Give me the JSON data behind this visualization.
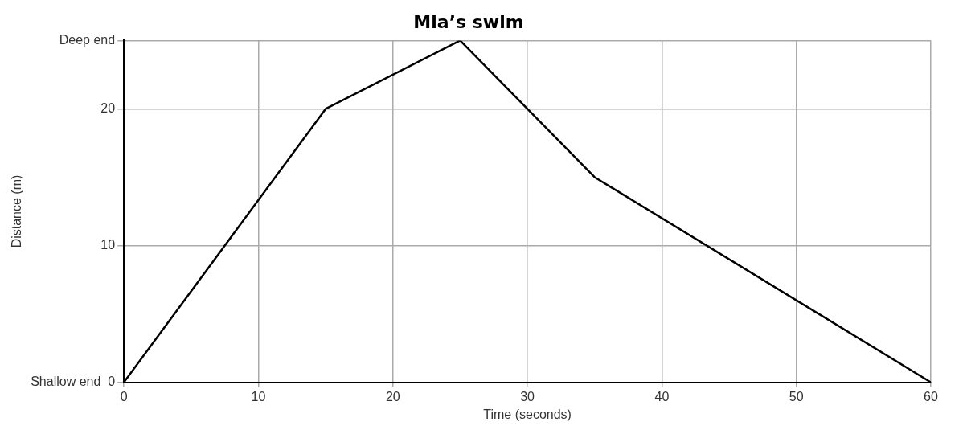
{
  "chart_data": {
    "type": "line",
    "title": "Mia’s swim",
    "xlabel": "Time (seconds)",
    "ylabel": "Distance (m)",
    "x": [
      0,
      15,
      25,
      35,
      60
    ],
    "series": [
      {
        "color": "#000000",
        "values": [
          0,
          20,
          25,
          15,
          0
        ]
      }
    ],
    "xlim": [
      0,
      60
    ],
    "xticks": [
      0,
      10,
      20,
      30,
      40,
      50,
      60
    ],
    "ylim": [
      0,
      25
    ],
    "yticks": [
      {
        "value": 0,
        "label": "Shallow end  0"
      },
      10,
      20,
      {
        "value": 25,
        "label": "Deep end"
      }
    ],
    "grid": true,
    "legend": false,
    "marker": "none",
    "line_style": "solid"
  }
}
